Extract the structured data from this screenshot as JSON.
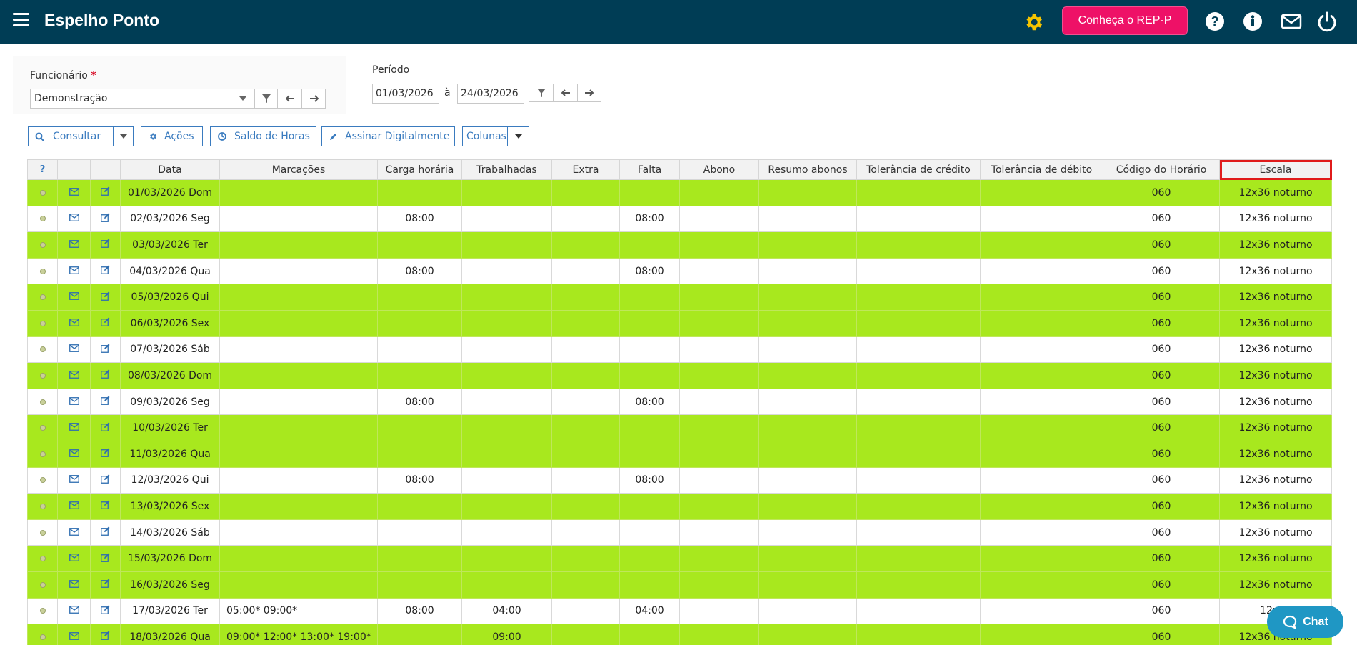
{
  "header": {
    "title": "Espelho Ponto",
    "rep_button": "Conheça o REP-P",
    "icons": [
      "menu-icon",
      "gear-icon",
      "help-icon",
      "info-icon",
      "mail-icon",
      "power-icon"
    ]
  },
  "filters": {
    "funcionario_label": "Funcionário",
    "required_mark": "*",
    "funcionario_value": "Demonstração",
    "periodo_label": "Período",
    "date_from": "01/03/2026",
    "date_sep": "à",
    "date_to": "24/03/2026"
  },
  "toolbar": {
    "consultar": "Consultar",
    "acoes": "Ações",
    "saldo": "Saldo de Horas",
    "assinar": "Assinar Digitalmente",
    "colunas": "Colunas"
  },
  "table": {
    "headers": [
      "?",
      "",
      "",
      "Data",
      "Marcações",
      "Carga horária",
      "Trabalhadas",
      "Extra",
      "Falta",
      "Abono",
      "Resumo abonos",
      "Tolerância de crédito",
      "Tolerância de débito",
      "Código do Horário",
      "Escala"
    ],
    "rows": [
      {
        "data": "01/03/2026 Dom",
        "marc": "",
        "carga": "",
        "trab": "",
        "falta": "",
        "codigo": "060",
        "escala": "12x36 noturno",
        "green": true
      },
      {
        "data": "02/03/2026 Seg",
        "marc": "",
        "carga": "08:00",
        "trab": "",
        "falta": "08:00",
        "codigo": "060",
        "escala": "12x36 noturno",
        "green": false
      },
      {
        "data": "03/03/2026 Ter",
        "marc": "",
        "carga": "",
        "trab": "",
        "falta": "",
        "codigo": "060",
        "escala": "12x36 noturno",
        "green": true
      },
      {
        "data": "04/03/2026 Qua",
        "marc": "",
        "carga": "08:00",
        "trab": "",
        "falta": "08:00",
        "codigo": "060",
        "escala": "12x36 noturno",
        "green": false
      },
      {
        "data": "05/03/2026 Qui",
        "marc": "",
        "carga": "",
        "trab": "",
        "falta": "",
        "codigo": "060",
        "escala": "12x36 noturno",
        "green": true
      },
      {
        "data": "06/03/2026 Sex",
        "marc": "",
        "carga": "",
        "trab": "",
        "falta": "",
        "codigo": "060",
        "escala": "12x36 noturno",
        "green": true
      },
      {
        "data": "07/03/2026 Sáb",
        "marc": "",
        "carga": "",
        "trab": "",
        "falta": "",
        "codigo": "060",
        "escala": "12x36 noturno",
        "green": false
      },
      {
        "data": "08/03/2026 Dom",
        "marc": "",
        "carga": "",
        "trab": "",
        "falta": "",
        "codigo": "060",
        "escala": "12x36 noturno",
        "green": true
      },
      {
        "data": "09/03/2026 Seg",
        "marc": "",
        "carga": "08:00",
        "trab": "",
        "falta": "08:00",
        "codigo": "060",
        "escala": "12x36 noturno",
        "green": false
      },
      {
        "data": "10/03/2026 Ter",
        "marc": "",
        "carga": "",
        "trab": "",
        "falta": "",
        "codigo": "060",
        "escala": "12x36 noturno",
        "green": true
      },
      {
        "data": "11/03/2026 Qua",
        "marc": "",
        "carga": "",
        "trab": "",
        "falta": "",
        "codigo": "060",
        "escala": "12x36 noturno",
        "green": true
      },
      {
        "data": "12/03/2026 Qui",
        "marc": "",
        "carga": "08:00",
        "trab": "",
        "falta": "08:00",
        "codigo": "060",
        "escala": "12x36 noturno",
        "green": false
      },
      {
        "data": "13/03/2026 Sex",
        "marc": "",
        "carga": "",
        "trab": "",
        "falta": "",
        "codigo": "060",
        "escala": "12x36 noturno",
        "green": true
      },
      {
        "data": "14/03/2026 Sáb",
        "marc": "",
        "carga": "",
        "trab": "",
        "falta": "",
        "codigo": "060",
        "escala": "12x36 noturno",
        "green": false
      },
      {
        "data": "15/03/2026 Dom",
        "marc": "",
        "carga": "",
        "trab": "",
        "falta": "",
        "codigo": "060",
        "escala": "12x36 noturno",
        "green": true
      },
      {
        "data": "16/03/2026 Seg",
        "marc": "",
        "carga": "",
        "trab": "",
        "falta": "",
        "codigo": "060",
        "escala": "12x36 noturno",
        "green": true
      },
      {
        "data": "17/03/2026 Ter",
        "marc": "05:00* 09:00*",
        "carga": "08:00",
        "trab": "04:00",
        "falta": "04:00",
        "codigo": "060",
        "escala": "12x36",
        "green": false
      },
      {
        "data": "18/03/2026 Qua",
        "marc": "09:00* 12:00* 13:00* 19:00*",
        "carga": "",
        "trab": "09:00",
        "falta": "",
        "codigo": "060",
        "escala": "12x36 noturno",
        "green": true
      }
    ]
  },
  "chat": {
    "label": "Chat"
  },
  "colors": {
    "topbar": "#003d55",
    "accent": "#ee1167",
    "green_row": "#a8e81e",
    "link": "#3a7bbf"
  }
}
